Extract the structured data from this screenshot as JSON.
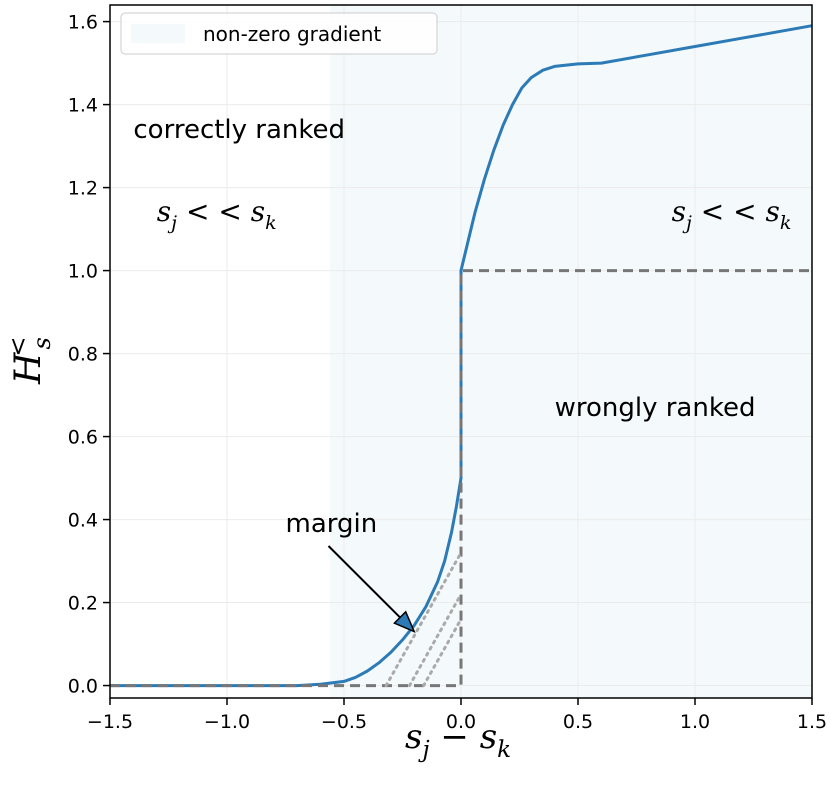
{
  "chart_data": {
    "type": "line",
    "xlabel": "s_j − s_k",
    "ylabel": "H_s^<",
    "xlim": [
      -1.5,
      1.5
    ],
    "ylim": [
      -0.03,
      1.64
    ],
    "x_ticks": [
      -1.5,
      -1.0,
      -0.5,
      0.0,
      0.5,
      1.0,
      1.5
    ],
    "x_tick_labels": [
      "−1.5",
      "−1.0",
      "−0.5",
      "0.0",
      "0.5",
      "1.0",
      "1.5"
    ],
    "y_ticks": [
      0.0,
      0.2,
      0.4,
      0.6,
      0.8,
      1.0,
      1.2,
      1.4,
      1.6
    ],
    "y_tick_labels": [
      "0.0",
      "0.2",
      "0.4",
      "0.6",
      "0.8",
      "1.0",
      "1.2",
      "1.4",
      "1.6"
    ],
    "grid": true,
    "legend_placement": "top-left",
    "legend": [
      {
        "label": "non-zero gradient",
        "color": "#f4f9fc"
      }
    ],
    "shaded_region": {
      "x_start": -0.56,
      "x_end": 1.5,
      "color": "#f4f9fc"
    },
    "series": [
      {
        "style": "solid",
        "color": "#2c7bb6",
        "points": [
          [
            -1.5,
            0.0
          ],
          [
            -0.7,
            0.0
          ],
          [
            -0.6,
            0.003
          ],
          [
            -0.5,
            0.01
          ],
          [
            -0.45,
            0.02
          ],
          [
            -0.4,
            0.035
          ],
          [
            -0.35,
            0.055
          ],
          [
            -0.3,
            0.08
          ],
          [
            -0.25,
            0.11
          ],
          [
            -0.2,
            0.145
          ],
          [
            -0.15,
            0.19
          ],
          [
            -0.1,
            0.25
          ],
          [
            -0.07,
            0.3
          ],
          [
            -0.04,
            0.37
          ],
          [
            -0.02,
            0.43
          ],
          [
            0.0,
            0.5
          ],
          [
            0.0,
            1.0
          ],
          [
            0.03,
            1.07
          ],
          [
            0.06,
            1.14
          ],
          [
            0.1,
            1.22
          ],
          [
            0.14,
            1.29
          ],
          [
            0.18,
            1.35
          ],
          [
            0.22,
            1.4
          ],
          [
            0.26,
            1.44
          ],
          [
            0.3,
            1.465
          ],
          [
            0.35,
            1.483
          ],
          [
            0.4,
            1.492
          ],
          [
            0.5,
            1.498
          ],
          [
            0.6,
            1.5
          ],
          [
            0.8,
            1.52
          ],
          [
            1.0,
            1.54
          ],
          [
            1.2,
            1.56
          ],
          [
            1.5,
            1.59
          ]
        ]
      },
      {
        "style": "dashed",
        "color": "#777777",
        "points": [
          [
            -1.5,
            0.0
          ],
          [
            0.0,
            0.0
          ],
          [
            0.0,
            1.0
          ],
          [
            1.5,
            1.0
          ]
        ]
      },
      {
        "style": "dotted",
        "color": "#aaaaaa",
        "points": [
          [
            -0.32,
            0.0
          ],
          [
            -0.22,
            0.1
          ],
          [
            -0.12,
            0.2
          ],
          [
            -0.02,
            0.3
          ],
          [
            0.0,
            0.32
          ]
        ]
      },
      {
        "style": "dotted",
        "color": "#aaaaaa",
        "points": [
          [
            -0.22,
            0.0
          ],
          [
            -0.12,
            0.1
          ],
          [
            -0.02,
            0.2
          ],
          [
            0.0,
            0.22
          ]
        ]
      },
      {
        "style": "dotted",
        "color": "#aaaaaa",
        "points": [
          [
            -0.16,
            0.0
          ],
          [
            -0.06,
            0.1
          ],
          [
            0.0,
            0.16
          ]
        ]
      }
    ],
    "annotations": [
      {
        "text": "correctly ranked",
        "x": -1.4,
        "y": 1.32,
        "kind": "text"
      },
      {
        "text": "wrongly ranked",
        "x": 0.4,
        "y": 0.65,
        "kind": "text"
      },
      {
        "text": "margin",
        "x": -0.75,
        "y": 0.37,
        "kind": "arrow",
        "arrow_to": [
          -0.2,
          0.13
        ]
      },
      {
        "kind": "math",
        "x": -1.3,
        "y": 1.12,
        "parts": [
          "s",
          "j",
          " < < ",
          "s",
          "k"
        ]
      },
      {
        "kind": "math",
        "x": 0.9,
        "y": 1.12,
        "parts": [
          "s",
          "j",
          " < < ",
          "s",
          "k"
        ]
      }
    ]
  }
}
